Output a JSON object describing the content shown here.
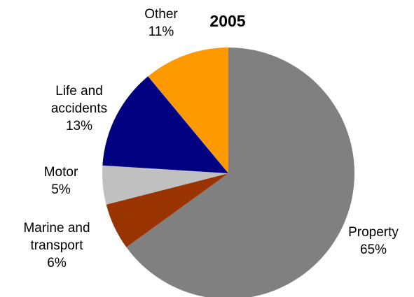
{
  "chart_data": {
    "type": "pie",
    "title": "2005",
    "slices": [
      {
        "label_lines": [
          "Property"
        ],
        "pct_label": "65%",
        "value": 65,
        "color": "#808080"
      },
      {
        "label_lines": [
          "Marine and",
          "transport"
        ],
        "pct_label": "6%",
        "value": 6,
        "color": "#993300"
      },
      {
        "label_lines": [
          "Motor"
        ],
        "pct_label": "5%",
        "value": 5,
        "color": "#c0c0c0"
      },
      {
        "label_lines": [
          "Life and",
          "accidents"
        ],
        "pct_label": "13%",
        "value": 13,
        "color": "#000080"
      },
      {
        "label_lines": [
          "Other"
        ],
        "pct_label": "11%",
        "value": 11,
        "color": "#ff9900"
      }
    ],
    "start_angle": "12 o'clock",
    "direction": "clockwise",
    "legend": "none"
  }
}
